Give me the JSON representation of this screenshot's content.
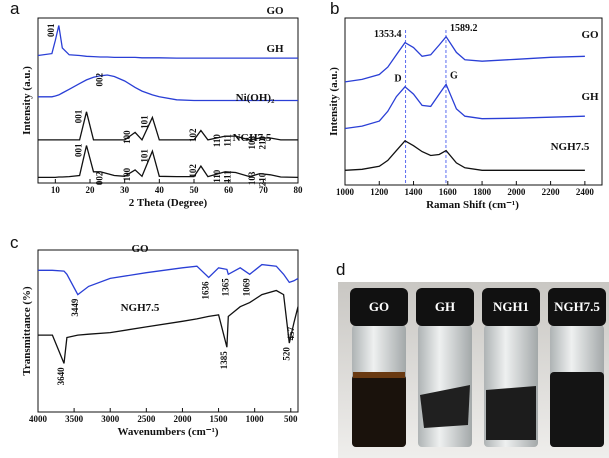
{
  "chart_data": [
    {
      "type": "line",
      "panel_label": "a",
      "xlabel": "2 Theta (Degree)",
      "ylabel": "Intensity (a.u.)",
      "xlim": [
        5,
        80
      ],
      "xticks": [
        10,
        20,
        30,
        40,
        50,
        60,
        70,
        80
      ],
      "ylim": [
        0,
        4.4
      ],
      "x": [
        5,
        9,
        10,
        11,
        12,
        14,
        17,
        19,
        21,
        23,
        25,
        27,
        30,
        33,
        35,
        38,
        40,
        45,
        50,
        52,
        54,
        59,
        62,
        66,
        69,
        72,
        75,
        80
      ],
      "series": [
        {
          "name": "GO",
          "color": "#2a3fd6",
          "values": [
            3.4,
            3.45,
            3.8,
            4.2,
            3.6,
            3.42,
            3.4,
            3.38,
            3.37,
            3.36,
            3.36,
            3.35,
            3.35,
            3.35,
            3.34,
            3.34,
            3.34,
            3.33,
            3.33,
            3.33,
            3.33,
            3.33,
            3.33,
            3.33,
            3.33,
            3.33,
            3.33,
            3.33
          ],
          "peak_labels": [
            {
              "x": 11,
              "label": "001",
              "color": "#e02020"
            }
          ]
        },
        {
          "name": "GH",
          "color": "#2a3fd6",
          "values": [
            2.3,
            2.3,
            2.32,
            2.35,
            2.4,
            2.5,
            2.65,
            2.75,
            2.82,
            2.86,
            2.88,
            2.84,
            2.72,
            2.55,
            2.45,
            2.35,
            2.3,
            2.22,
            2.2,
            2.2,
            2.2,
            2.2,
            2.2,
            2.2,
            2.2,
            2.2,
            2.2,
            2.2
          ],
          "peak_labels": [
            {
              "x": 25,
              "label": "002",
              "color": "#e02020"
            }
          ]
        },
        {
          "name": "Ni(OH)₂",
          "color": "#111111",
          "values": [
            1.15,
            1.15,
            1.15,
            1.15,
            1.15,
            1.15,
            1.15,
            1.9,
            1.15,
            1.15,
            1.15,
            1.15,
            1.15,
            1.35,
            1.15,
            1.75,
            1.15,
            1.15,
            1.15,
            1.4,
            1.15,
            1.25,
            1.25,
            1.15,
            1.2,
            1.2,
            1.15,
            1.15
          ],
          "peak_labels": [
            {
              "x": 19,
              "label": "001"
            },
            {
              "x": 33,
              "label": "100"
            },
            {
              "x": 38,
              "label": "101"
            },
            {
              "x": 52,
              "label": "102"
            },
            {
              "x": 59,
              "label": "110"
            },
            {
              "x": 62,
              "label": "111"
            },
            {
              "x": 69,
              "label": "103"
            },
            {
              "x": 72,
              "label": "210"
            }
          ]
        },
        {
          "name": "NGH7.5",
          "color": "#111111",
          "values": [
            0.15,
            0.15,
            0.15,
            0.16,
            0.16,
            0.17,
            0.2,
            1.0,
            0.3,
            0.3,
            0.25,
            0.2,
            0.18,
            0.35,
            0.18,
            0.85,
            0.18,
            0.17,
            0.17,
            0.45,
            0.17,
            0.3,
            0.28,
            0.17,
            0.25,
            0.22,
            0.16,
            0.15
          ],
          "peak_labels": [
            {
              "x": 19,
              "label": "001"
            },
            {
              "x": 25,
              "label": "002",
              "color": "#e02020"
            },
            {
              "x": 33,
              "label": "100"
            },
            {
              "x": 38,
              "label": "101"
            },
            {
              "x": 52,
              "label": "102"
            },
            {
              "x": 59,
              "label": "110"
            },
            {
              "x": 62,
              "label": "111"
            },
            {
              "x": 69,
              "label": "103"
            },
            {
              "x": 72,
              "label": "210"
            }
          ]
        }
      ]
    },
    {
      "type": "line",
      "panel_label": "b",
      "xlabel": "Raman Shift (cm⁻¹)",
      "ylabel": "Intensity (a.u.)",
      "xlim": [
        1000,
        2500
      ],
      "xticks": [
        1000,
        1200,
        1400,
        1600,
        1800,
        2000,
        2200,
        2400
      ],
      "ylim": [
        0,
        3.4
      ],
      "x": [
        1000,
        1100,
        1200,
        1250,
        1300,
        1350,
        1400,
        1450,
        1500,
        1550,
        1590,
        1650,
        1700,
        1800,
        2000,
        2200,
        2400
      ],
      "peak_lines": [
        1353.4,
        1589.2
      ],
      "peak_names": [
        "D",
        "G"
      ],
      "series": [
        {
          "name": "GO",
          "color": "#2a3fd6",
          "values": [
            2.1,
            2.15,
            2.25,
            2.4,
            2.65,
            2.9,
            2.8,
            2.62,
            2.65,
            2.85,
            3.02,
            2.7,
            2.55,
            2.52,
            2.56,
            2.6,
            2.62
          ]
        },
        {
          "name": "GH",
          "color": "#2a3fd6",
          "values": [
            1.15,
            1.2,
            1.3,
            1.5,
            1.8,
            2.0,
            1.85,
            1.62,
            1.6,
            1.85,
            2.05,
            1.55,
            1.4,
            1.35,
            1.36,
            1.38,
            1.4
          ]
        },
        {
          "name": "NGH7.5",
          "color": "#111111",
          "values": [
            0.3,
            0.32,
            0.38,
            0.5,
            0.7,
            0.9,
            0.8,
            0.68,
            0.6,
            0.62,
            0.7,
            0.45,
            0.35,
            0.3,
            0.3,
            0.3,
            0.3
          ]
        }
      ]
    },
    {
      "type": "line",
      "panel_label": "c",
      "xlabel": "Wavenumbers (cm⁻¹)",
      "ylabel": "Transmittance (%)",
      "xlim": [
        4000,
        400
      ],
      "xticks": [
        4000,
        3500,
        3000,
        2500,
        2000,
        1500,
        1000,
        500
      ],
      "ylim": [
        0,
        2
      ],
      "x": [
        4000,
        3800,
        3640,
        3600,
        3449,
        3300,
        3000,
        2500,
        2000,
        1800,
        1636,
        1500,
        1385,
        1365,
        1200,
        1069,
        900,
        700,
        600,
        520,
        457,
        400
      ],
      "series": [
        {
          "name": "GO",
          "color": "#2a3fd6",
          "values": [
            1.75,
            1.75,
            1.74,
            1.7,
            1.45,
            1.55,
            1.65,
            1.72,
            1.78,
            1.8,
            1.66,
            1.78,
            1.76,
            1.7,
            1.78,
            1.7,
            1.82,
            1.8,
            1.7,
            1.6,
            1.62,
            1.65
          ],
          "peak_labels": [
            3449,
            1636,
            1365,
            1069
          ]
        },
        {
          "name": "NGH7.5",
          "color": "#111111",
          "values": [
            0.95,
            0.95,
            0.6,
            0.92,
            0.95,
            0.96,
            0.98,
            1.05,
            1.12,
            1.15,
            1.18,
            1.2,
            0.8,
            1.18,
            1.3,
            1.35,
            1.45,
            1.5,
            1.45,
            0.85,
            1.1,
            1.3
          ],
          "peak_labels": [
            3640,
            1385,
            520,
            457
          ]
        }
      ]
    }
  ],
  "photo": {
    "panel_label": "d",
    "vials": [
      "GO",
      "GH",
      "NGH1",
      "NGH7.5"
    ]
  }
}
